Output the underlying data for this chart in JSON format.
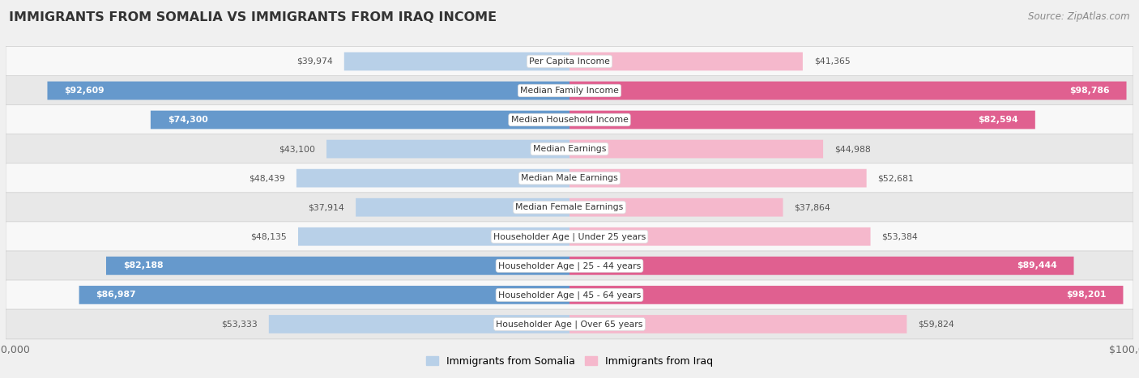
{
  "title": "IMMIGRANTS FROM SOMALIA VS IMMIGRANTS FROM IRAQ INCOME",
  "source": "Source: ZipAtlas.com",
  "categories": [
    "Per Capita Income",
    "Median Family Income",
    "Median Household Income",
    "Median Earnings",
    "Median Male Earnings",
    "Median Female Earnings",
    "Householder Age | Under 25 years",
    "Householder Age | 25 - 44 years",
    "Householder Age | 45 - 64 years",
    "Householder Age | Over 65 years"
  ],
  "somalia_values": [
    39974,
    92609,
    74300,
    43100,
    48439,
    37914,
    48135,
    82188,
    86987,
    53333
  ],
  "iraq_values": [
    41365,
    98786,
    82594,
    44988,
    52681,
    37864,
    53384,
    89444,
    98201,
    59824
  ],
  "somalia_labels": [
    "$39,974",
    "$92,609",
    "$74,300",
    "$43,100",
    "$48,439",
    "$37,914",
    "$48,135",
    "$82,188",
    "$86,987",
    "$53,333"
  ],
  "iraq_labels": [
    "$41,365",
    "$98,786",
    "$82,594",
    "$44,988",
    "$52,681",
    "$37,864",
    "$53,384",
    "$89,444",
    "$98,201",
    "$59,824"
  ],
  "somalia_color_light": "#b8d0e8",
  "somalia_color_dark": "#6699cc",
  "iraq_color_light": "#f5b8cc",
  "iraq_color_dark": "#e06090",
  "somalia_threshold": 60000,
  "iraq_threshold": 60000,
  "max_value": 100000,
  "background_color": "#f0f0f0",
  "row_bg_even": "#f8f8f8",
  "row_bg_odd": "#e8e8e8",
  "legend_somalia": "Immigrants from Somalia",
  "legend_iraq": "Immigrants from Iraq"
}
